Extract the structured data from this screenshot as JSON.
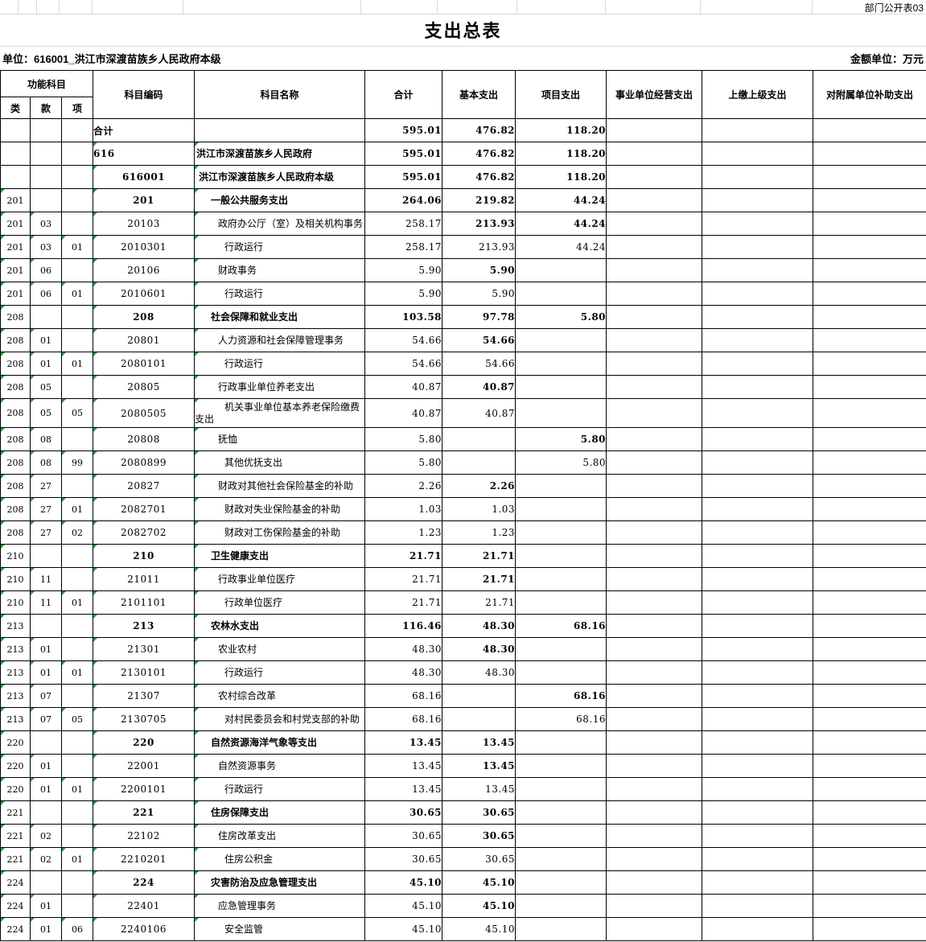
{
  "header": {
    "doc_code": "部门公开表03",
    "title": "支出总表",
    "unit_line": "单位：616001_洪江市深渡苗族乡人民政府本级",
    "amount_unit": "金额单位：万元"
  },
  "table": {
    "column_group_label": "功能科目",
    "sub_columns": [
      "类",
      "款",
      "项"
    ],
    "columns": [
      "科目编码",
      "科目名称",
      "合计",
      "基本支出",
      "项目支出",
      "事业单位经营支出",
      "上缴上级支出",
      "对附属单位补助支出"
    ],
    "rows": [
      {
        "lei": "",
        "kuan": "",
        "xiang": "",
        "code": "合计",
        "name": "",
        "level": 0,
        "total": "595.01",
        "basic": "476.82",
        "project": "118.20"
      },
      {
        "lei": "",
        "kuan": "",
        "xiang": "",
        "code": "616",
        "name": "洪江市深渡苗族乡人民政府",
        "level": 1,
        "total": "595.01",
        "basic": "476.82",
        "project": "118.20"
      },
      {
        "lei": "",
        "kuan": "",
        "xiang": "",
        "code": "616001",
        "name": "洪江市深渡苗族乡人民政府本级",
        "level": 2,
        "total": "595.01",
        "basic": "476.82",
        "project": "118.20"
      },
      {
        "lei": "201",
        "kuan": "",
        "xiang": "",
        "code": "201",
        "name": "一般公共服务支出",
        "level": 3,
        "total": "264.06",
        "basic": "219.82",
        "project": "44.24"
      },
      {
        "lei": "201",
        "kuan": "03",
        "xiang": "",
        "code": "20103",
        "name": "政府办公厅（室）及相关机构事务",
        "level": 4,
        "total": "258.17",
        "basic": "213.93",
        "project": "44.24"
      },
      {
        "lei": "201",
        "kuan": "03",
        "xiang": "01",
        "code": "2010301",
        "name": "行政运行",
        "level": 5,
        "total": "258.17",
        "basic": "213.93",
        "project": "44.24"
      },
      {
        "lei": "201",
        "kuan": "06",
        "xiang": "",
        "code": "20106",
        "name": "财政事务",
        "level": 4,
        "total": "5.90",
        "basic": "5.90",
        "project": ""
      },
      {
        "lei": "201",
        "kuan": "06",
        "xiang": "01",
        "code": "2010601",
        "name": "行政运行",
        "level": 5,
        "total": "5.90",
        "basic": "5.90",
        "project": ""
      },
      {
        "lei": "208",
        "kuan": "",
        "xiang": "",
        "code": "208",
        "name": "社会保障和就业支出",
        "level": 3,
        "total": "103.58",
        "basic": "97.78",
        "project": "5.80"
      },
      {
        "lei": "208",
        "kuan": "01",
        "xiang": "",
        "code": "20801",
        "name": "人力资源和社会保障管理事务",
        "level": 4,
        "total": "54.66",
        "basic": "54.66",
        "project": ""
      },
      {
        "lei": "208",
        "kuan": "01",
        "xiang": "01",
        "code": "2080101",
        "name": "行政运行",
        "level": 5,
        "total": "54.66",
        "basic": "54.66",
        "project": ""
      },
      {
        "lei": "208",
        "kuan": "05",
        "xiang": "",
        "code": "20805",
        "name": "行政事业单位养老支出",
        "level": 4,
        "total": "40.87",
        "basic": "40.87",
        "project": ""
      },
      {
        "lei": "208",
        "kuan": "05",
        "xiang": "05",
        "code": "2080505",
        "name": "机关事业单位基本养老保险缴费支出",
        "level": 5,
        "total": "40.87",
        "basic": "40.87",
        "project": "",
        "tall": true
      },
      {
        "lei": "208",
        "kuan": "08",
        "xiang": "",
        "code": "20808",
        "name": "抚恤",
        "level": 4,
        "total": "5.80",
        "basic": "",
        "project": "5.80"
      },
      {
        "lei": "208",
        "kuan": "08",
        "xiang": "99",
        "code": "2080899",
        "name": "其他优抚支出",
        "level": 5,
        "total": "5.80",
        "basic": "",
        "project": "5.80"
      },
      {
        "lei": "208",
        "kuan": "27",
        "xiang": "",
        "code": "20827",
        "name": "财政对其他社会保险基金的补助",
        "level": 4,
        "total": "2.26",
        "basic": "2.26",
        "project": ""
      },
      {
        "lei": "208",
        "kuan": "27",
        "xiang": "01",
        "code": "2082701",
        "name": "财政对失业保险基金的补助",
        "level": 5,
        "total": "1.03",
        "basic": "1.03",
        "project": ""
      },
      {
        "lei": "208",
        "kuan": "27",
        "xiang": "02",
        "code": "2082702",
        "name": "财政对工伤保险基金的补助",
        "level": 5,
        "total": "1.23",
        "basic": "1.23",
        "project": ""
      },
      {
        "lei": "210",
        "kuan": "",
        "xiang": "",
        "code": "210",
        "name": "卫生健康支出",
        "level": 3,
        "total": "21.71",
        "basic": "21.71",
        "project": ""
      },
      {
        "lei": "210",
        "kuan": "11",
        "xiang": "",
        "code": "21011",
        "name": "行政事业单位医疗",
        "level": 4,
        "total": "21.71",
        "basic": "21.71",
        "project": ""
      },
      {
        "lei": "210",
        "kuan": "11",
        "xiang": "01",
        "code": "2101101",
        "name": "行政单位医疗",
        "level": 5,
        "total": "21.71",
        "basic": "21.71",
        "project": ""
      },
      {
        "lei": "213",
        "kuan": "",
        "xiang": "",
        "code": "213",
        "name": "农林水支出",
        "level": 3,
        "total": "116.46",
        "basic": "48.30",
        "project": "68.16"
      },
      {
        "lei": "213",
        "kuan": "01",
        "xiang": "",
        "code": "21301",
        "name": "农业农村",
        "level": 4,
        "total": "48.30",
        "basic": "48.30",
        "project": ""
      },
      {
        "lei": "213",
        "kuan": "01",
        "xiang": "01",
        "code": "2130101",
        "name": "行政运行",
        "level": 5,
        "total": "48.30",
        "basic": "48.30",
        "project": ""
      },
      {
        "lei": "213",
        "kuan": "07",
        "xiang": "",
        "code": "21307",
        "name": "农村综合改革",
        "level": 4,
        "total": "68.16",
        "basic": "",
        "project": "68.16"
      },
      {
        "lei": "213",
        "kuan": "07",
        "xiang": "05",
        "code": "2130705",
        "name": "对村民委员会和村党支部的补助",
        "level": 5,
        "total": "68.16",
        "basic": "",
        "project": "68.16"
      },
      {
        "lei": "220",
        "kuan": "",
        "xiang": "",
        "code": "220",
        "name": "自然资源海洋气象等支出",
        "level": 3,
        "total": "13.45",
        "basic": "13.45",
        "project": ""
      },
      {
        "lei": "220",
        "kuan": "01",
        "xiang": "",
        "code": "22001",
        "name": "自然资源事务",
        "level": 4,
        "total": "13.45",
        "basic": "13.45",
        "project": ""
      },
      {
        "lei": "220",
        "kuan": "01",
        "xiang": "01",
        "code": "2200101",
        "name": "行政运行",
        "level": 5,
        "total": "13.45",
        "basic": "13.45",
        "project": ""
      },
      {
        "lei": "221",
        "kuan": "",
        "xiang": "",
        "code": "221",
        "name": "住房保障支出",
        "level": 3,
        "total": "30.65",
        "basic": "30.65",
        "project": ""
      },
      {
        "lei": "221",
        "kuan": "02",
        "xiang": "",
        "code": "22102",
        "name": "住房改革支出",
        "level": 4,
        "total": "30.65",
        "basic": "30.65",
        "project": ""
      },
      {
        "lei": "221",
        "kuan": "02",
        "xiang": "01",
        "code": "2210201",
        "name": "住房公积金",
        "level": 5,
        "total": "30.65",
        "basic": "30.65",
        "project": ""
      },
      {
        "lei": "224",
        "kuan": "",
        "xiang": "",
        "code": "224",
        "name": "灾害防治及应急管理支出",
        "level": 3,
        "total": "45.10",
        "basic": "45.10",
        "project": ""
      },
      {
        "lei": "224",
        "kuan": "01",
        "xiang": "",
        "code": "22401",
        "name": "应急管理事务",
        "level": 4,
        "total": "45.10",
        "basic": "45.10",
        "project": ""
      },
      {
        "lei": "224",
        "kuan": "01",
        "xiang": "06",
        "code": "2240106",
        "name": "安全监管",
        "level": 5,
        "total": "45.10",
        "basic": "45.10",
        "project": ""
      }
    ]
  },
  "colors": {
    "error_triangle": "#21a038",
    "gridline": "#d9d9d9",
    "table_border": "#000000"
  }
}
